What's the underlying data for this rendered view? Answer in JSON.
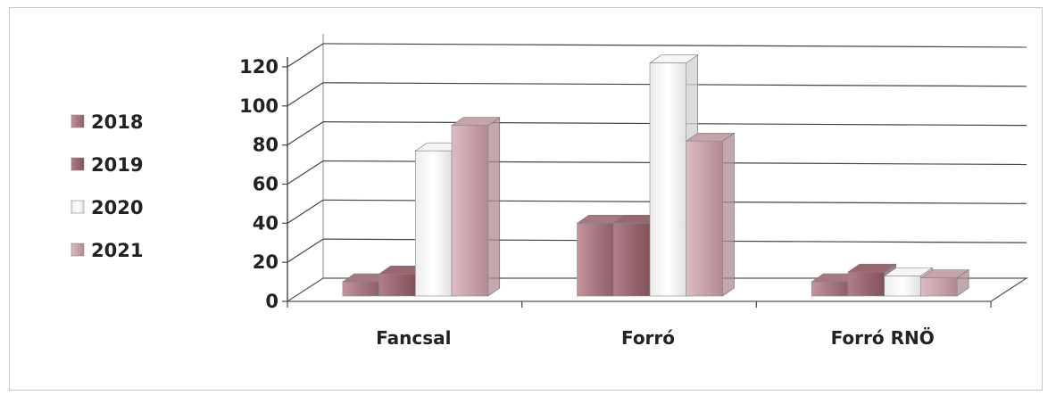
{
  "chart_data": {
    "type": "bar",
    "style": "3d-clustered-column",
    "categories": [
      "Fancsal",
      "Forró",
      "Forró RNÖ"
    ],
    "series": [
      {
        "name": "2018",
        "values": [
          10,
          40,
          10
        ],
        "color": "#a87882"
      },
      {
        "name": "2019",
        "values": [
          14,
          40,
          15
        ],
        "color": "#9a6670"
      },
      {
        "name": "2020",
        "values": [
          77,
          122,
          13
        ],
        "color": "#f6f6f6"
      },
      {
        "name": "2021",
        "values": [
          90,
          82,
          12
        ],
        "color": "#c9a3aa"
      }
    ],
    "y_ticks": [
      "0",
      "20",
      "40",
      "60",
      "80",
      "100",
      "120"
    ],
    "ylim": [
      0,
      125
    ],
    "grid": true,
    "legend_position": "left",
    "title": "",
    "xlabel": "",
    "ylabel": ""
  }
}
